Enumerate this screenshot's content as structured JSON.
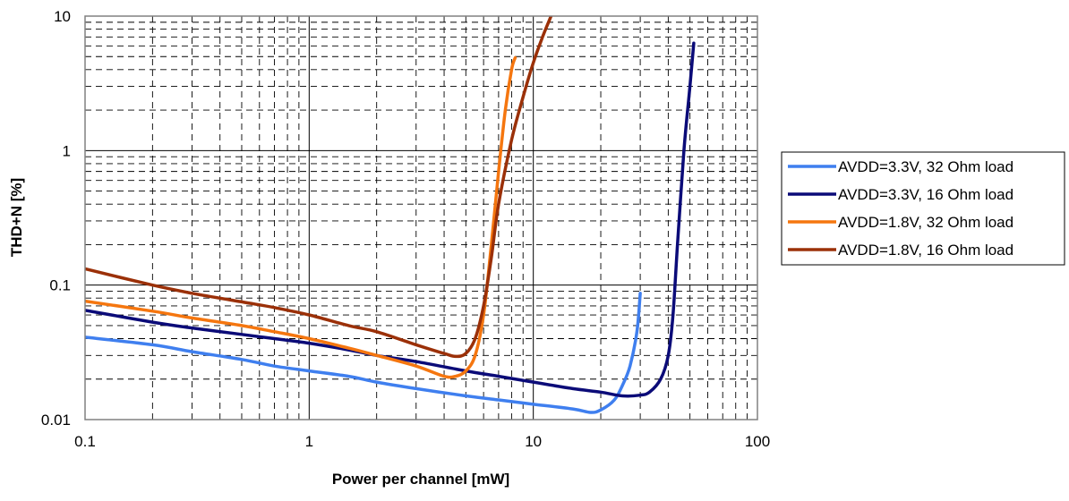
{
  "chart_data": {
    "type": "line",
    "xlabel": "Power per channel [mW]",
    "ylabel": "THD+N [%]",
    "xscale": "log",
    "yscale": "log",
    "xlim": [
      0.1,
      100
    ],
    "ylim": [
      0.01,
      10
    ],
    "x_tick_labels": [
      "0.1",
      "1",
      "10",
      "100"
    ],
    "y_tick_labels": [
      "0.01",
      "0.1",
      "1",
      "10"
    ],
    "x_tick_values": [
      0.1,
      1,
      10,
      100
    ],
    "y_tick_values": [
      0.01,
      0.1,
      1,
      10
    ],
    "grid": "major solid, minor dashed",
    "legend_position": "right",
    "series": [
      {
        "name": "AVDD=3.3V, 32 Ohm load",
        "color": "#3f7fef",
        "x": [
          0.1,
          0.2,
          0.3,
          0.5,
          0.7,
          1,
          1.5,
          2,
          3,
          5,
          7,
          10,
          15,
          18,
          20,
          23,
          25,
          27,
          29,
          30
        ],
        "y": [
          0.041,
          0.036,
          0.032,
          0.028,
          0.025,
          0.023,
          0.021,
          0.019,
          0.017,
          0.015,
          0.014,
          0.013,
          0.012,
          0.0113,
          0.0118,
          0.014,
          0.018,
          0.025,
          0.045,
          0.087
        ]
      },
      {
        "name": "AVDD=3.3V, 16 Ohm load",
        "color": "#0b0b78",
        "x": [
          0.1,
          0.2,
          0.3,
          0.5,
          0.7,
          1,
          1.5,
          2,
          3,
          5,
          7,
          10,
          15,
          20,
          25,
          30,
          33,
          37,
          40,
          42,
          44,
          47,
          50,
          52
        ],
        "y": [
          0.065,
          0.053,
          0.048,
          0.043,
          0.04,
          0.037,
          0.033,
          0.03,
          0.027,
          0.023,
          0.021,
          0.019,
          0.017,
          0.016,
          0.015,
          0.0152,
          0.016,
          0.02,
          0.03,
          0.06,
          0.2,
          1,
          3,
          6.3
        ]
      },
      {
        "name": "AVDD=1.8V, 32 Ohm load",
        "color": "#f5760f",
        "x": [
          0.1,
          0.2,
          0.3,
          0.5,
          0.7,
          1,
          1.5,
          2,
          3,
          4,
          4.5,
          5,
          5.5,
          6,
          6.5,
          7,
          7.5,
          8,
          8.3
        ],
        "y": [
          0.076,
          0.064,
          0.057,
          0.05,
          0.045,
          0.04,
          0.034,
          0.03,
          0.025,
          0.021,
          0.021,
          0.023,
          0.03,
          0.06,
          0.2,
          0.7,
          2,
          4,
          4.9
        ]
      },
      {
        "name": "AVDD=1.8V, 16 Ohm load",
        "color": "#9b3008",
        "x": [
          0.1,
          0.2,
          0.3,
          0.5,
          0.7,
          1,
          1.5,
          2,
          3,
          4,
          4.5,
          5,
          5.5,
          6,
          6.5,
          7,
          8,
          9,
          10,
          11,
          12
        ],
        "y": [
          0.132,
          0.1,
          0.087,
          0.075,
          0.068,
          0.06,
          0.05,
          0.045,
          0.036,
          0.031,
          0.0295,
          0.031,
          0.04,
          0.07,
          0.16,
          0.4,
          1.2,
          2.5,
          4.5,
          7,
          10
        ]
      }
    ]
  }
}
